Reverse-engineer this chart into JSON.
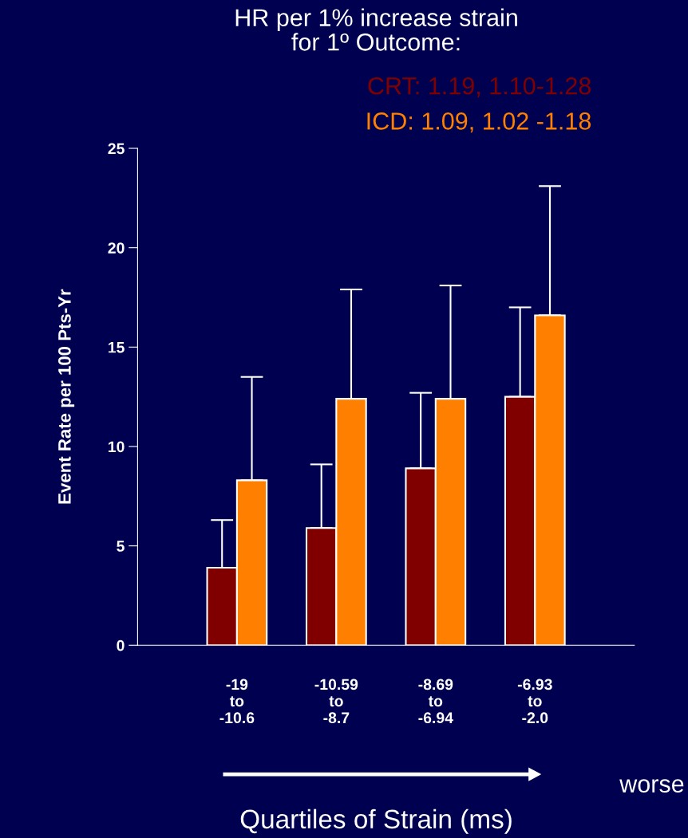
{
  "chart_data": {
    "type": "bar",
    "title": "HR per 1% increase strain\nfor 1º Outcome:",
    "ylabel": "Event Rate per 100 Pts-Yr",
    "xlabel": "Quartiles of Strain (ms)",
    "annotations": [
      "CRT: 1.19, 1.10-1.28",
      "ICD: 1.09, 1.02 -1.18",
      "worse"
    ],
    "categories": [
      "-19\nto\n-10.6",
      "-10.59\nto\n-8.7",
      "-8.69\nto\n-6.94",
      "-6.93\nto\n-2.0"
    ],
    "series": [
      {
        "color": "#800000",
        "values": [
          3.9,
          5.9,
          8.9,
          12.5
        ],
        "errors": [
          [
            3.9,
            6.3
          ],
          [
            5.9,
            9.1
          ],
          [
            8.9,
            12.7
          ],
          [
            12.5,
            17.0
          ]
        ]
      },
      {
        "color": "#ff8000",
        "values": [
          8.3,
          12.4,
          12.4,
          16.6
        ],
        "errors": [
          [
            8.3,
            13.5
          ],
          [
            12.4,
            17.9
          ],
          [
            12.4,
            18.1
          ],
          [
            16.6,
            23.1
          ]
        ]
      }
    ],
    "ylim": [
      0,
      25
    ],
    "yticks": [
      0,
      5,
      10,
      15,
      20,
      25
    ],
    "grid": false,
    "legend": false
  }
}
